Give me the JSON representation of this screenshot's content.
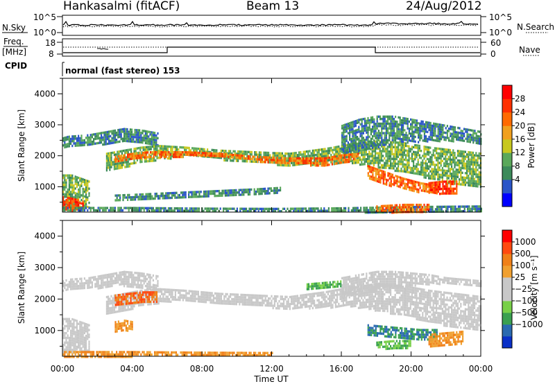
{
  "header": {
    "station": "Hankasalmi (fitACF)",
    "beam": "Beam 13",
    "date": "24/Aug/2012"
  },
  "panels": {
    "nsky": {
      "left_label": "N.Sky",
      "right_label": "N.Search",
      "left_ticks": [
        "10^5",
        "10^0"
      ],
      "right_ticks": [
        "10^5",
        "10^0"
      ]
    },
    "freq": {
      "left_label_1": "Freq.",
      "left_label_2": "[MHz]",
      "right_label": "Nave",
      "left_ticks": [
        "18",
        "8"
      ],
      "right_ticks": [
        "60",
        "0"
      ]
    },
    "cpid": {
      "label": "CPID",
      "mode": "normal (fast stereo) 153"
    }
  },
  "colorbars": {
    "power": {
      "title": "Power [dB]",
      "colors": [
        "#0000ff",
        "#2a55c8",
        "#3c8a5a",
        "#5aa85a",
        "#c8c81e",
        "#f0a01e",
        "#ff6a00",
        "#ff3000",
        "#ff0000"
      ],
      "ticks": [
        "28",
        "24",
        "20",
        "16",
        "12",
        "8",
        "4"
      ]
    },
    "velocity": {
      "title": "Velocity [m s⁻¹]",
      "colors": [
        "#ff0000",
        "#ff4a10",
        "#f08018",
        "#f0a030",
        "#c8c8c8",
        "#c8c8c8",
        "#78d048",
        "#3aa050",
        "#2a6ab0",
        "#0a30c8"
      ],
      "ticks": [
        "1000",
        "500",
        "100",
        "25",
        "−25",
        "−100",
        "−500",
        "−1000"
      ]
    }
  },
  "chart_data": [
    {
      "type": "heatmap",
      "name": "power",
      "ylabel": "Slant Range [km]",
      "ylim": [
        180,
        4500
      ],
      "yticks": [
        1000,
        2000,
        3000,
        4000
      ],
      "xlim": [
        0,
        24
      ],
      "xticks": [
        "00:00",
        "04:00",
        "08:00",
        "12:00",
        "16:00",
        "20:00",
        "00:00"
      ],
      "value_label": "Power [dB]",
      "bands": [
        {
          "t": [
            0,
            0.3,
            1.5,
            2.5,
            3.5,
            4.5,
            5.5
          ],
          "low": [
            2300,
            2300,
            2350,
            2400,
            2450,
            2400,
            2300
          ],
          "high": [
            2600,
            2650,
            2700,
            2800,
            2900,
            2850,
            2750
          ],
          "level": 8
        },
        {
          "t": [
            2.5,
            3.5,
            4.5,
            5.5,
            7,
            9,
            11,
            13,
            15,
            16.5,
            18,
            19.5,
            21,
            22.5,
            24
          ],
          "low": [
            1500,
            1650,
            1800,
            1900,
            2000,
            1900,
            1800,
            1700,
            1750,
            1800,
            1650,
            1500,
            1300,
            1100,
            1000
          ],
          "high": [
            2100,
            2200,
            2300,
            2350,
            2300,
            2200,
            2150,
            2100,
            2250,
            2400,
            2500,
            2450,
            2300,
            2200,
            2100
          ],
          "level": 12
        },
        {
          "t": [
            3,
            4,
            5,
            7,
            9,
            11,
            13,
            15,
            16,
            17
          ],
          "low": [
            1800,
            1900,
            1950,
            2000,
            1950,
            1850,
            1750,
            1700,
            1800,
            1900
          ],
          "high": [
            2000,
            2100,
            2150,
            2150,
            2100,
            2000,
            1950,
            1950,
            2050,
            2100
          ],
          "level": 24
        },
        {
          "t": [
            16,
            17,
            18,
            19,
            20,
            21,
            22,
            23,
            24
          ],
          "low": [
            2100,
            2200,
            2300,
            2400,
            2450,
            2500,
            2500,
            2500,
            2400
          ],
          "high": [
            3000,
            3200,
            3300,
            3300,
            3200,
            3100,
            3000,
            2900,
            2800
          ],
          "level": 8
        },
        {
          "t": [
            17.5,
            18.5,
            19.5,
            20.5,
            21.5
          ],
          "low": [
            1300,
            1100,
            950,
            850,
            800
          ],
          "high": [
            1700,
            1500,
            1300,
            1150,
            1050
          ],
          "level": 24
        },
        {
          "t": [
            0,
            0.5,
            1,
            1.5
          ],
          "low": [
            300,
            300,
            300,
            350
          ],
          "high": [
            1400,
            1400,
            1300,
            1200
          ],
          "level": 12
        },
        {
          "t": [
            0,
            0.5,
            1.2
          ],
          "low": [
            250,
            250,
            300
          ],
          "high": [
            700,
            650,
            550
          ],
          "level": 28
        },
        {
          "t": [
            0,
            4,
            8,
            12,
            16,
            20,
            24
          ],
          "low": [
            200,
            200,
            200,
            200,
            200,
            200,
            200
          ],
          "high": [
            350,
            350,
            330,
            320,
            340,
            380,
            400
          ],
          "level": 8
        },
        {
          "t": [
            3,
            5,
            7,
            9,
            11,
            12.5
          ],
          "low": [
            550,
            600,
            650,
            700,
            750,
            800
          ],
          "high": [
            750,
            800,
            850,
            900,
            950,
            1000
          ],
          "level": 8
        },
        {
          "t": [
            18,
            19.5,
            21
          ],
          "low": [
            200,
            200,
            200
          ],
          "high": [
            400,
            450,
            450
          ],
          "level": 24
        },
        {
          "t": [
            21,
            21.8,
            22.6
          ],
          "low": [
            800,
            800,
            820
          ],
          "high": [
            1150,
            1200,
            1200
          ],
          "level": 28
        }
      ]
    },
    {
      "type": "heatmap",
      "name": "velocity",
      "ylabel": "Slant Range [km]",
      "ylim": [
        180,
        4500
      ],
      "yticks": [
        1000,
        2000,
        3000,
        4000
      ],
      "xlim": [
        0,
        24
      ],
      "xticks": [
        "00:00",
        "04:00",
        "08:00",
        "12:00",
        "16:00",
        "20:00",
        "00:00"
      ],
      "xlabel": "Time UT",
      "value_label": "Velocity [m s⁻¹]",
      "bands": [
        {
          "t": [
            0,
            0.3,
            1.5,
            2.5,
            3.5,
            4.5,
            5.5
          ],
          "low": [
            2300,
            2300,
            2350,
            2400,
            2450,
            2400,
            2300
          ],
          "high": [
            2600,
            2650,
            2700,
            2800,
            2900,
            2850,
            2750
          ],
          "level": 0
        },
        {
          "t": [
            2.5,
            3.5,
            4.5,
            5.5,
            7,
            9,
            11,
            13,
            15,
            16.5,
            18,
            19.5,
            21,
            22.5,
            24
          ],
          "low": [
            1500,
            1650,
            1800,
            1900,
            2000,
            1900,
            1800,
            1700,
            1750,
            1800,
            1650,
            1500,
            1300,
            1100,
            1000
          ],
          "high": [
            2100,
            2200,
            2300,
            2350,
            2300,
            2200,
            2150,
            2100,
            2250,
            2400,
            2500,
            2450,
            2300,
            2200,
            2100
          ],
          "level": 0
        },
        {
          "t": [
            16,
            17,
            18,
            19,
            20,
            21,
            22,
            23,
            24
          ],
          "low": [
            2100,
            2200,
            2300,
            2400,
            2450,
            2500,
            2500,
            2500,
            2400
          ],
          "high": [
            2700,
            2800,
            2900,
            2900,
            2850,
            2800,
            2700,
            2650,
            2600
          ],
          "level": 0
        },
        {
          "t": [
            0,
            0.5,
            1,
            1.5
          ],
          "low": [
            300,
            300,
            300,
            350
          ],
          "high": [
            1400,
            1400,
            1300,
            1200
          ],
          "level": 0
        },
        {
          "t": [
            3,
            3.8,
            4.6,
            5.4
          ],
          "low": [
            1850,
            1900,
            1950,
            1950
          ],
          "high": [
            2150,
            2200,
            2250,
            2250
          ],
          "level": -500
        },
        {
          "t": [
            3,
            3.5,
            4
          ],
          "low": [
            1000,
            1000,
            1050
          ],
          "high": [
            1300,
            1350,
            1300
          ],
          "level": -100
        },
        {
          "t": [
            0,
            4,
            8,
            12
          ],
          "low": [
            200,
            200,
            200,
            200
          ],
          "high": [
            350,
            350,
            330,
            320
          ],
          "level": -100
        },
        {
          "t": [
            17.5,
            18.5,
            19.5,
            20.5,
            21.5
          ],
          "low": [
            900,
            800,
            750,
            700,
            700
          ],
          "high": [
            1200,
            1150,
            1100,
            1050,
            1050
          ],
          "level": 500
        },
        {
          "t": [
            18,
            19,
            20
          ],
          "low": [
            450,
            450,
            450
          ],
          "high": [
            650,
            700,
            700
          ],
          "level": 100
        },
        {
          "t": [
            21,
            22,
            23
          ],
          "low": [
            500,
            550,
            600
          ],
          "high": [
            900,
            950,
            1000
          ],
          "level": -100
        },
        {
          "t": [
            14,
            15,
            16
          ],
          "low": [
            2300,
            2350,
            2400
          ],
          "high": [
            2500,
            2550,
            2600
          ],
          "level": 100
        }
      ]
    }
  ]
}
